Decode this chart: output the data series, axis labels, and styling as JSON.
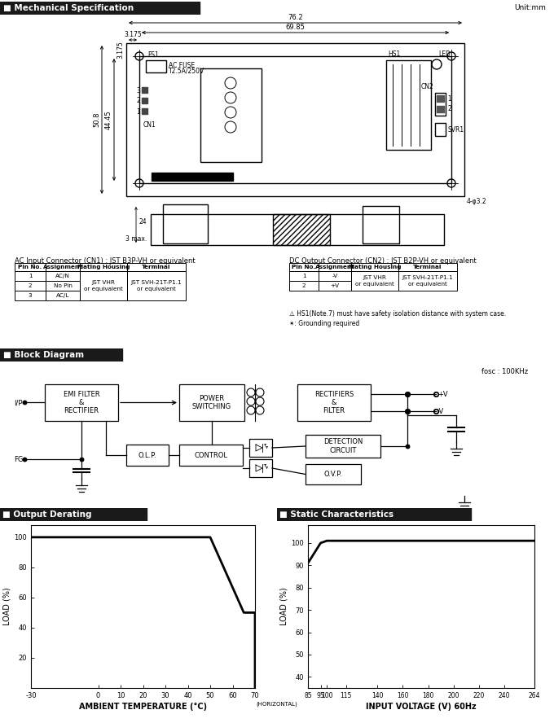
{
  "bg_color": "#ffffff",
  "line_color": "#000000",
  "ac_table": {
    "title": "AC Input Connector (CN1) : JST B3P-VH or equivalent",
    "headers": [
      "Pin No.",
      "Assignment",
      "Mating Housing",
      "Terminal"
    ],
    "rows_col01": [
      [
        "1",
        "AC/N"
      ],
      [
        "2",
        "No Pin"
      ],
      [
        "3",
        "AC/L"
      ]
    ],
    "mating": "JST VHR\nor equivalent",
    "terminal": "JST SVH-21T-P1.1\nor equivalent"
  },
  "dc_table": {
    "title": "DC Output Connector (CN2) : JST B2P-VH or equivalent",
    "headers": [
      "Pin No.",
      "Assignment",
      "Mating Housing",
      "Terminal"
    ],
    "rows_col01": [
      [
        "1",
        "-V"
      ],
      [
        "2",
        "+V"
      ]
    ],
    "mating": "JST VHR\nor equivalent",
    "terminal": "JST SVH-21T-P1.1\nor equivalent"
  },
  "note1": "⚠ HS1(Note.7) must have safety isolation distance with system case.",
  "note2": "✶: Grounding required",
  "derating": {
    "x": [
      -30,
      50,
      65,
      70,
      70
    ],
    "y": [
      100,
      100,
      50,
      50,
      0
    ],
    "xlabel": "AMBIENT TEMPERATURE (°C)",
    "ylabel": "LOAD (%)",
    "xticks": [
      -30,
      0,
      10,
      20,
      30,
      40,
      50,
      60,
      70
    ],
    "xtick_labels": [
      "-30",
      "0",
      "10",
      "20",
      "30",
      "40",
      "50",
      "60",
      "70"
    ],
    "yticks": [
      20,
      40,
      60,
      80,
      100
    ],
    "ytick_labels": [
      "20",
      "40",
      "60",
      "80",
      "100"
    ],
    "ylim": [
      0,
      108
    ],
    "xlim": [
      -30,
      70
    ]
  },
  "static": {
    "x": [
      85,
      95,
      100,
      264
    ],
    "y": [
      91,
      100,
      101,
      101
    ],
    "xlabel": "INPUT VOLTAGE (V) 60Hz",
    "ylabel": "LOAD (%)",
    "xticks": [
      85,
      95,
      100,
      115,
      140,
      160,
      180,
      200,
      220,
      240,
      264
    ],
    "xtick_labels": [
      "85",
      "95",
      "100",
      "115",
      "140",
      "160",
      "180",
      "200",
      "220",
      "240",
      "264"
    ],
    "yticks": [
      40,
      50,
      60,
      70,
      80,
      90,
      100
    ],
    "ytick_labels": [
      "40",
      "50",
      "60",
      "70",
      "80",
      "90",
      "100"
    ],
    "ylim": [
      35,
      108
    ],
    "xlim": [
      85,
      264
    ]
  }
}
